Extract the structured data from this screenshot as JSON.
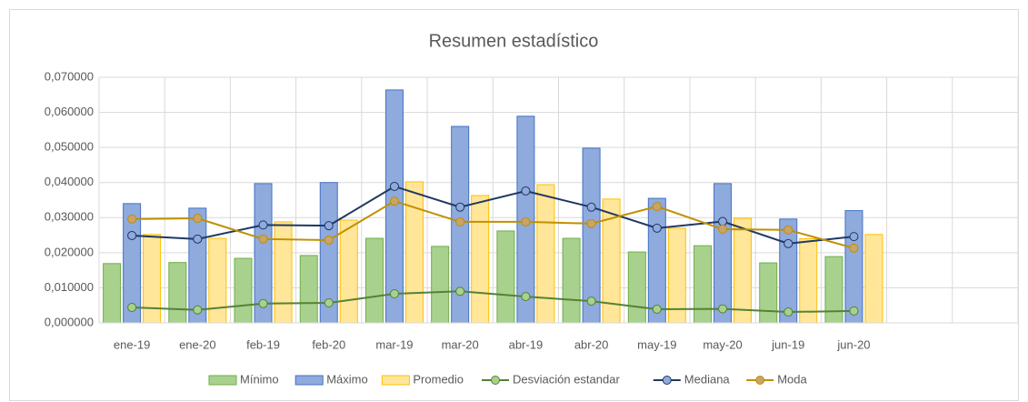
{
  "chart_data": {
    "type": "bar",
    "title": "Resumen  estadístico",
    "categories": [
      "ene-19",
      "ene-20",
      "feb-19",
      "feb-20",
      "mar-19",
      "mar-20",
      "abr-19",
      "abr-20",
      "may-19",
      "may-20",
      "jun-19",
      "jun-20",
      null,
      null
    ],
    "ylim": [
      0,
      0.07
    ],
    "yticks": [
      {
        "value": 0,
        "label": "0,000000"
      },
      {
        "value": 0.01,
        "label": "0,010000"
      },
      {
        "value": 0.02,
        "label": "0,020000"
      },
      {
        "value": 0.03,
        "label": "0,030000"
      },
      {
        "value": 0.04,
        "label": "0,040000"
      },
      {
        "value": 0.05,
        "label": "0,050000"
      },
      {
        "value": 0.06,
        "label": "0,060000"
      },
      {
        "value": 0.07,
        "label": "0,070000"
      }
    ],
    "grid": true,
    "legend": "bottom",
    "series": [
      {
        "name": "Mínimo",
        "type": "bar",
        "color": "#a9d18e",
        "edge": "#70ad47",
        "values": [
          0.0169,
          0.0172,
          0.0184,
          0.0192,
          0.0241,
          0.0218,
          0.0262,
          0.0241,
          0.0202,
          0.022,
          0.0171,
          0.0189,
          null,
          null
        ]
      },
      {
        "name": "Máximo",
        "type": "bar",
        "color": "#8faadc",
        "edge": "#4472c4",
        "values": [
          0.034,
          0.0327,
          0.0397,
          0.04,
          0.0664,
          0.056,
          0.0589,
          0.0498,
          0.0355,
          0.0397,
          0.0296,
          0.032,
          null,
          null
        ]
      },
      {
        "name": "Promedio",
        "type": "bar",
        "color": "#ffe699",
        "edge": "#ffc000",
        "values": [
          0.0252,
          0.0241,
          0.0288,
          0.0293,
          0.0402,
          0.0363,
          0.0394,
          0.0353,
          0.027,
          0.0298,
          0.024,
          0.0252,
          null,
          null
        ]
      },
      {
        "name": "Desviación estandar",
        "type": "line",
        "color": "#548235",
        "marker": "#a9d18e",
        "values": [
          0.0044,
          0.0037,
          0.0055,
          0.0057,
          0.0083,
          0.009,
          0.0075,
          0.0062,
          0.0039,
          0.004,
          0.0031,
          0.0034,
          null,
          null
        ]
      },
      {
        "name": "Mediana",
        "type": "line",
        "color": "#203864",
        "marker": "#8faadc",
        "values": [
          0.0249,
          0.0239,
          0.0279,
          0.0277,
          0.0389,
          0.033,
          0.0376,
          0.033,
          0.027,
          0.0289,
          0.0226,
          0.0246,
          null,
          null
        ]
      },
      {
        "name": "Moda",
        "type": "line",
        "color": "#bf9000",
        "marker": "#c9a46a",
        "values": [
          0.0296,
          0.0298,
          0.0239,
          0.0236,
          0.0347,
          0.0288,
          0.0288,
          0.0283,
          0.0332,
          0.0267,
          0.0265,
          0.0213,
          null,
          null
        ]
      }
    ]
  }
}
